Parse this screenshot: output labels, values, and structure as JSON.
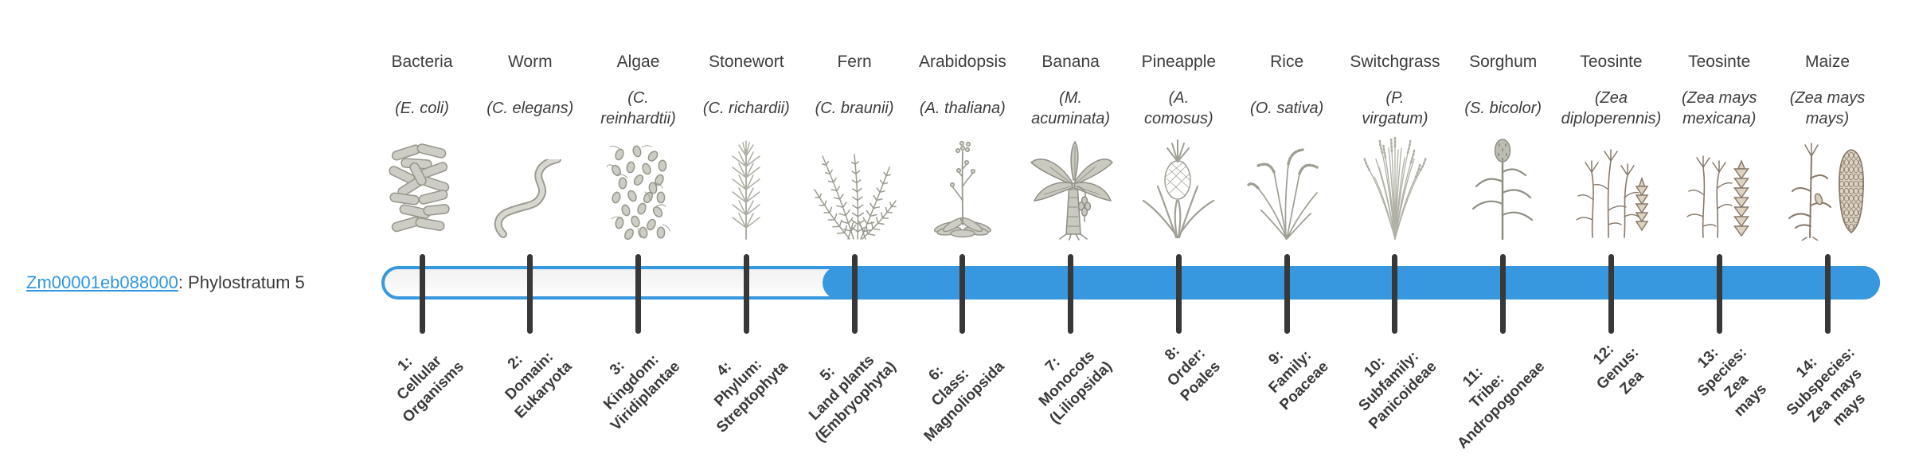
{
  "page": {
    "background": "#ffffff"
  },
  "colors": {
    "bar_blue": "#3798df",
    "link_blue": "#2f96df",
    "tick_dark": "#383838",
    "text_dark": "#3a3a3a",
    "unfilled_bar_fill": "#f5f5f5"
  },
  "gene": {
    "id": "Zm00001eb088000",
    "annotation": ": Phylostratum 5",
    "phylostratum": 5
  },
  "timeline": {
    "stratum_count": 14,
    "filled_from_stratum": 5,
    "filled_to_stratum": 14
  },
  "organisms": [
    {
      "name": "Bacteria",
      "sci": "(E. coli)",
      "icon": "bacteria-icon",
      "stratum": 1,
      "stratum_label": "1:\nCellular\nOrganisms"
    },
    {
      "name": "Worm",
      "sci": "(C. elegans)",
      "icon": "worm-icon",
      "stratum": 2,
      "stratum_label": "2:\nDomain:\nEukaryota"
    },
    {
      "name": "Algae",
      "sci": "(C.\nreinhardtii)",
      "icon": "algae-icon",
      "stratum": 3,
      "stratum_label": "3:\nKingdom:\nViridiplantae"
    },
    {
      "name": "Stonewort",
      "sci": "(C. richardii)",
      "icon": "stonewort-icon",
      "stratum": 4,
      "stratum_label": "4:\nPhylum:\nStreptophyta"
    },
    {
      "name": "Fern",
      "sci": "(C. braunii)",
      "icon": "fern-icon",
      "stratum": 5,
      "stratum_label": "5:\nLand plants\n(Embryophyta)"
    },
    {
      "name": "Arabidopsis",
      "sci": "(A. thaliana)",
      "icon": "arabidopsis-icon",
      "stratum": 6,
      "stratum_label": "6:\nClass:\nMagnoliopsida"
    },
    {
      "name": "Banana",
      "sci": "(M.\nacuminata)",
      "icon": "banana-icon",
      "stratum": 7,
      "stratum_label": "7:\nMonocots\n(Liliopsida)"
    },
    {
      "name": "Pineapple",
      "sci": "(A.\ncomosus)",
      "icon": "pineapple-icon",
      "stratum": 8,
      "stratum_label": "8:\nOrder:\nPoales"
    },
    {
      "name": "Rice",
      "sci": "(O. sativa)",
      "icon": "rice-icon",
      "stratum": 9,
      "stratum_label": "9:\nFamily:\nPoaceae"
    },
    {
      "name": "Switchgrass",
      "sci": "(P.\nvirgatum)",
      "icon": "switchgrass-icon",
      "stratum": 10,
      "stratum_label": "10:\nSubfamily:\nPanicoideae"
    },
    {
      "name": "Sorghum",
      "sci": "(S. bicolor)",
      "icon": "sorghum-icon",
      "stratum": 11,
      "stratum_label": "11:\nTribe:\nAndropogoneae"
    },
    {
      "name": "Teosinte",
      "sci": "(Zea\ndiploperennis)",
      "icon": "teosinte-diploperennis-icon",
      "stratum": 12,
      "stratum_label": "12:\nGenus:\nZea"
    },
    {
      "name": "Teosinte",
      "sci": "(Zea mays\nmexicana)",
      "icon": "teosinte-mexicana-icon",
      "stratum": 13,
      "stratum_label": "13:\nSpecies:\nZea\nmays"
    },
    {
      "name": "Maize",
      "sci": "(Zea mays\nmays)",
      "icon": "maize-icon",
      "stratum": 14,
      "stratum_label": "14:\nSubspecies:\nZea mays\nmays"
    }
  ]
}
